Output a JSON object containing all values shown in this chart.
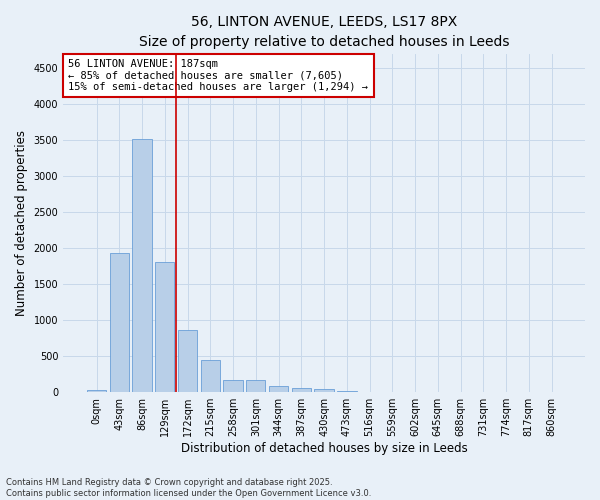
{
  "title_line1": "56, LINTON AVENUE, LEEDS, LS17 8PX",
  "title_line2": "Size of property relative to detached houses in Leeds",
  "xlabel": "Distribution of detached houses by size in Leeds",
  "ylabel": "Number of detached properties",
  "categories": [
    "0sqm",
    "43sqm",
    "86sqm",
    "129sqm",
    "172sqm",
    "215sqm",
    "258sqm",
    "301sqm",
    "344sqm",
    "387sqm",
    "430sqm",
    "473sqm",
    "516sqm",
    "559sqm",
    "602sqm",
    "645sqm",
    "688sqm",
    "731sqm",
    "774sqm",
    "817sqm",
    "860sqm"
  ],
  "values": [
    25,
    1940,
    3520,
    1810,
    860,
    450,
    170,
    165,
    90,
    55,
    40,
    10,
    5,
    0,
    0,
    0,
    0,
    0,
    0,
    0,
    0
  ],
  "bar_color": "#b8cfe8",
  "bar_edge_color": "#6a9fd8",
  "grid_color": "#c8d8ea",
  "background_color": "#e8f0f8",
  "annotation_box_text": "56 LINTON AVENUE: 187sqm\n← 85% of detached houses are smaller (7,605)\n15% of semi-detached houses are larger (1,294) →",
  "vline_x": 4.5,
  "vline_color": "#cc0000",
  "ylim": [
    0,
    4700
  ],
  "yticks": [
    0,
    500,
    1000,
    1500,
    2000,
    2500,
    3000,
    3500,
    4000,
    4500
  ],
  "footer_line1": "Contains HM Land Registry data © Crown copyright and database right 2025.",
  "footer_line2": "Contains public sector information licensed under the Open Government Licence v3.0.",
  "title_fontsize": 10,
  "subtitle_fontsize": 9,
  "tick_fontsize": 7,
  "ylabel_fontsize": 8.5,
  "xlabel_fontsize": 8.5,
  "annotation_fontsize": 7.5
}
